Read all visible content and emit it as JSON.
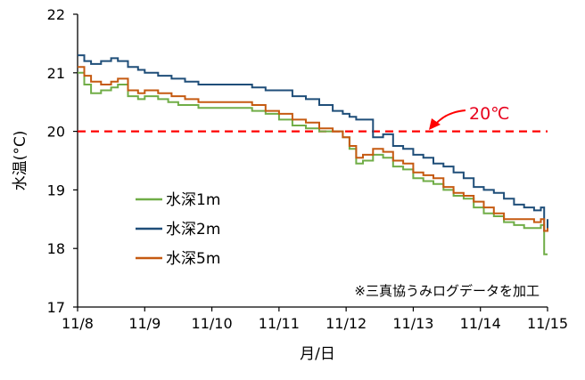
{
  "chart_data": {
    "type": "line",
    "xlabel": "月/日",
    "ylabel": "水温(°C)",
    "x_ticks": [
      "11/8",
      "11/9",
      "11/10",
      "11/11",
      "11/12",
      "11/13",
      "11/14",
      "11/15"
    ],
    "xlim": [
      0,
      7
    ],
    "ylim": [
      17,
      22
    ],
    "y_ticks": [
      17,
      18,
      19,
      20,
      21,
      22
    ],
    "grid": false,
    "legend_position": "lower-left",
    "note": "※三真協うみログデータを加工",
    "reference_line": {
      "value": 20,
      "label": "20℃",
      "color": "#ff0000",
      "style": "dashed"
    },
    "series": [
      {
        "name": "水深1m",
        "color": "#70ad47",
        "x": [
          0,
          0.1,
          0.2,
          0.35,
          0.5,
          0.6,
          0.75,
          0.9,
          1.0,
          1.2,
          1.35,
          1.5,
          1.8,
          2.0,
          2.3,
          2.6,
          2.8,
          3.0,
          3.2,
          3.4,
          3.6,
          3.8,
          3.95,
          4.05,
          4.15,
          4.25,
          4.4,
          4.55,
          4.7,
          4.85,
          5.0,
          5.15,
          5.3,
          5.45,
          5.6,
          5.75,
          5.9,
          6.05,
          6.2,
          6.35,
          6.5,
          6.65,
          6.8,
          6.9,
          6.95,
          7.0
        ],
        "y": [
          21.0,
          20.8,
          20.65,
          20.7,
          20.75,
          20.8,
          20.6,
          20.55,
          20.6,
          20.55,
          20.5,
          20.45,
          20.4,
          20.4,
          20.4,
          20.35,
          20.3,
          20.2,
          20.1,
          20.05,
          20.0,
          20.0,
          19.9,
          19.7,
          19.45,
          19.5,
          19.6,
          19.55,
          19.4,
          19.35,
          19.2,
          19.15,
          19.1,
          19.0,
          18.9,
          18.85,
          18.7,
          18.6,
          18.55,
          18.45,
          18.4,
          18.35,
          18.35,
          18.4,
          17.9,
          17.9
        ]
      },
      {
        "name": "水深2m",
        "color": "#1f4e79",
        "x": [
          0,
          0.1,
          0.2,
          0.35,
          0.5,
          0.6,
          0.75,
          0.9,
          1.0,
          1.2,
          1.4,
          1.6,
          1.8,
          2.0,
          2.3,
          2.6,
          2.8,
          3.0,
          3.2,
          3.4,
          3.6,
          3.8,
          3.95,
          4.05,
          4.15,
          4.25,
          4.4,
          4.55,
          4.7,
          4.85,
          5.0,
          5.15,
          5.3,
          5.45,
          5.6,
          5.75,
          5.9,
          6.05,
          6.2,
          6.35,
          6.5,
          6.65,
          6.8,
          6.9,
          6.95,
          7.0
        ],
        "y": [
          21.3,
          21.2,
          21.15,
          21.2,
          21.25,
          21.2,
          21.1,
          21.05,
          21.0,
          20.95,
          20.9,
          20.85,
          20.8,
          20.8,
          20.8,
          20.75,
          20.7,
          20.7,
          20.6,
          20.55,
          20.45,
          20.35,
          20.3,
          20.25,
          20.2,
          20.2,
          19.9,
          19.95,
          19.75,
          19.7,
          19.6,
          19.55,
          19.45,
          19.4,
          19.3,
          19.2,
          19.05,
          19.0,
          18.95,
          18.85,
          18.75,
          18.7,
          18.65,
          18.7,
          18.3,
          18.5
        ]
      },
      {
        "name": "水深5m",
        "color": "#c55a11",
        "x": [
          0,
          0.1,
          0.2,
          0.35,
          0.5,
          0.6,
          0.75,
          0.9,
          1.0,
          1.2,
          1.4,
          1.6,
          1.8,
          2.0,
          2.3,
          2.6,
          2.8,
          3.0,
          3.2,
          3.4,
          3.6,
          3.8,
          3.95,
          4.05,
          4.15,
          4.25,
          4.4,
          4.55,
          4.7,
          4.85,
          5.0,
          5.15,
          5.3,
          5.45,
          5.6,
          5.75,
          5.9,
          6.05,
          6.2,
          6.35,
          6.5,
          6.65,
          6.8,
          6.9,
          6.95,
          7.0
        ],
        "y": [
          21.1,
          20.95,
          20.85,
          20.8,
          20.85,
          20.9,
          20.7,
          20.65,
          20.7,
          20.65,
          20.6,
          20.55,
          20.5,
          20.5,
          20.5,
          20.45,
          20.35,
          20.3,
          20.2,
          20.15,
          20.05,
          20.0,
          19.9,
          19.75,
          19.55,
          19.6,
          19.7,
          19.65,
          19.5,
          19.45,
          19.3,
          19.25,
          19.2,
          19.05,
          18.95,
          18.9,
          18.8,
          18.7,
          18.6,
          18.5,
          18.5,
          18.5,
          18.45,
          18.5,
          18.3,
          18.35
        ]
      }
    ]
  }
}
